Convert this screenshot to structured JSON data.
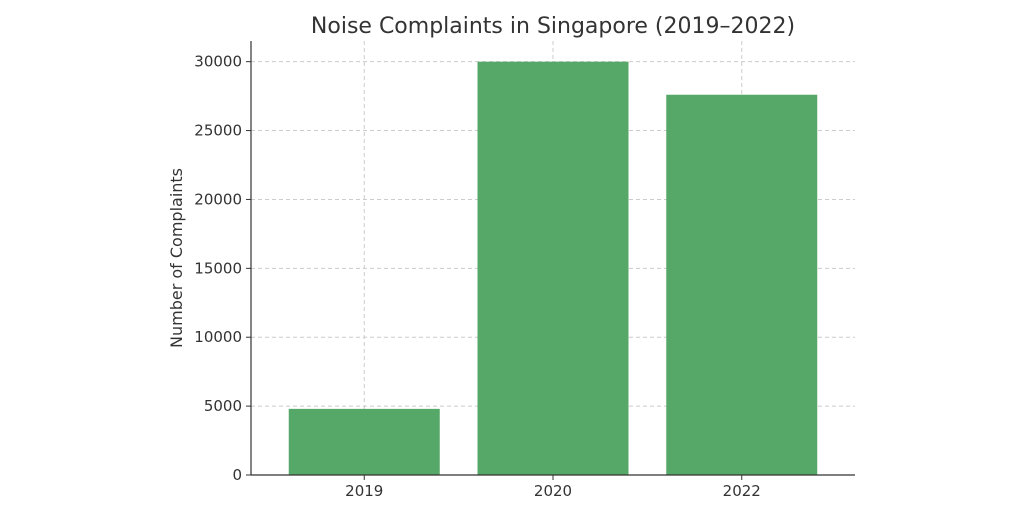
{
  "chart_data": {
    "type": "bar",
    "title": "Noise Complaints in Singapore (2019–2022)",
    "xlabel": "",
    "ylabel": "Number of Complaints",
    "categories": [
      "2019",
      "2020",
      "2022"
    ],
    "values": [
      4800,
      30000,
      27600
    ],
    "ylim": [
      0,
      31500
    ],
    "yticks": [
      0,
      5000,
      10000,
      15000,
      20000,
      25000,
      30000
    ],
    "grid": true,
    "bar_color": "#56a869"
  }
}
